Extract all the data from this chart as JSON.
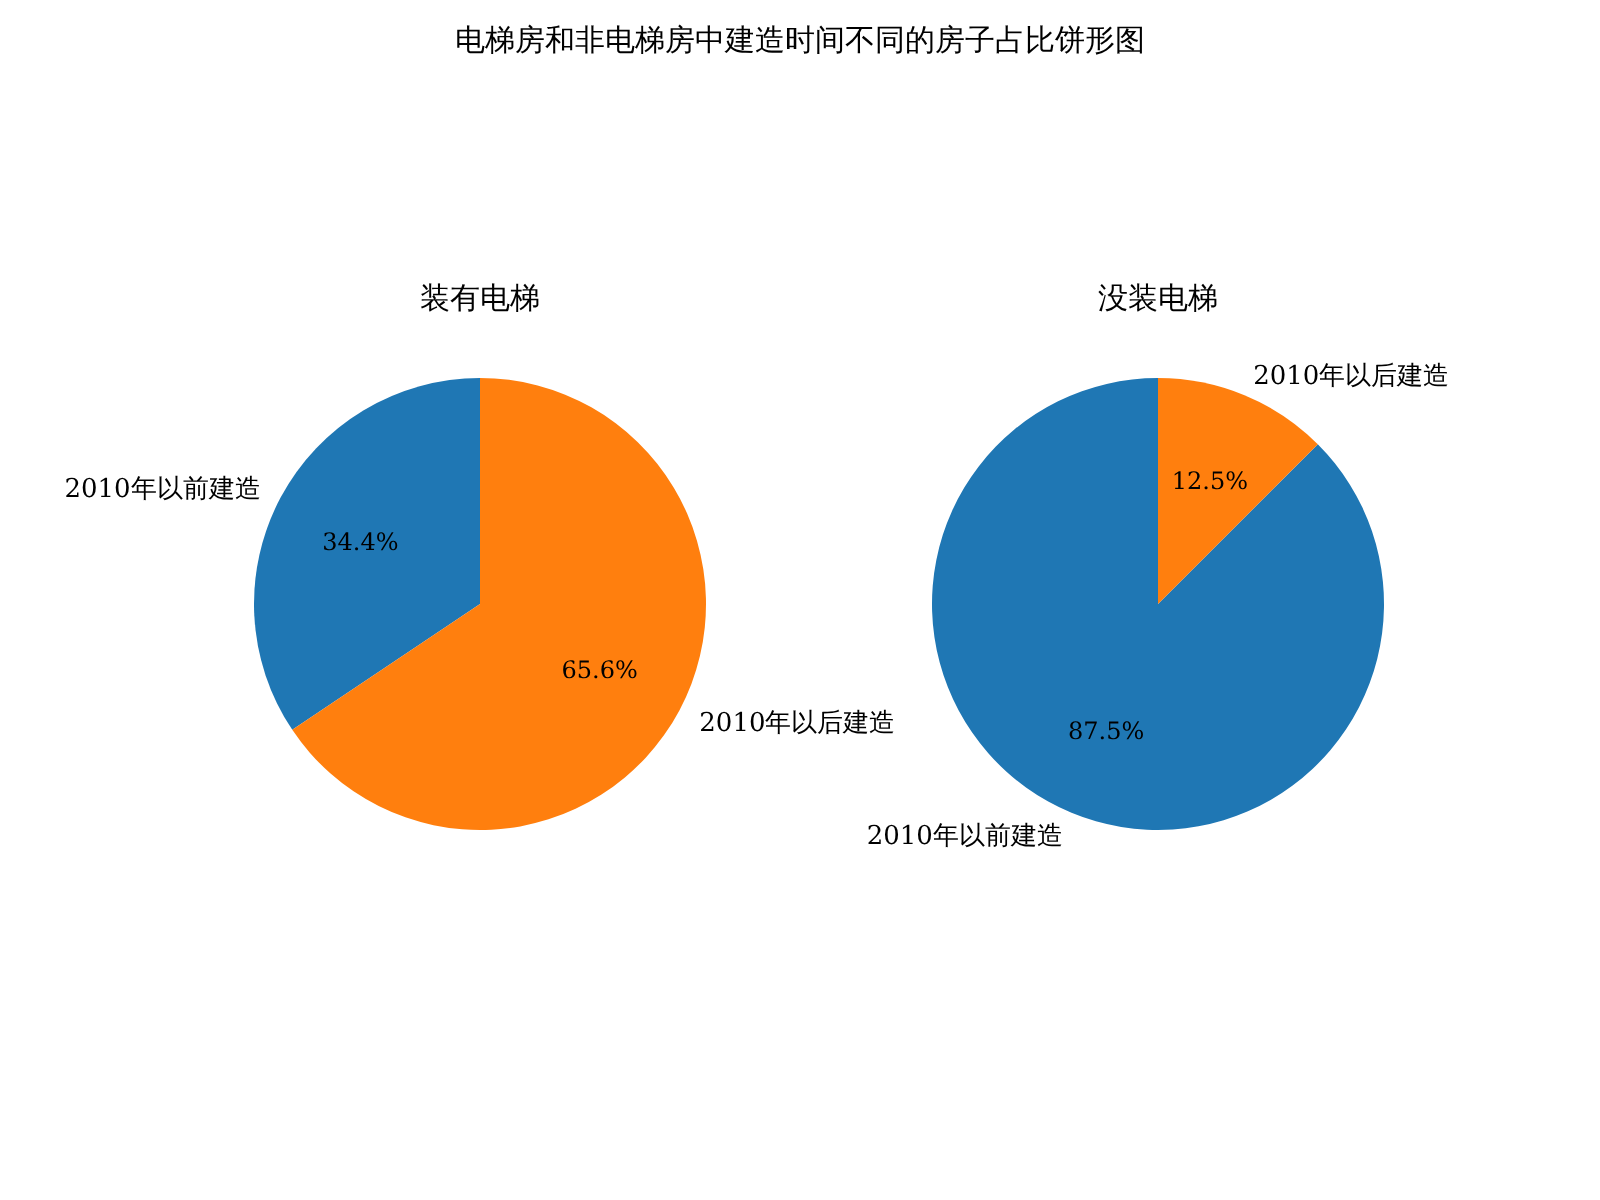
{
  "chart_data": [
    {
      "type": "other",
      "title": "电梯房和非电梯房中建造时间不同的房子占比饼形图"
    },
    {
      "type": "pie",
      "title": "装有电梯",
      "categories": [
        "2010年以前建造",
        "2010年以后建造"
      ],
      "values": [
        34.4,
        65.6
      ],
      "colors": [
        "#1f77b4",
        "#ff7f0e"
      ],
      "value_labels": [
        "34.4%",
        "65.6%"
      ]
    },
    {
      "type": "pie",
      "title": "没装电梯",
      "categories": [
        "2010年以前建造",
        "2010年以后建造"
      ],
      "values": [
        87.5,
        12.5
      ],
      "colors": [
        "#1f77b4",
        "#ff7f0e"
      ],
      "value_labels": [
        "87.5%",
        "12.5%"
      ]
    }
  ]
}
